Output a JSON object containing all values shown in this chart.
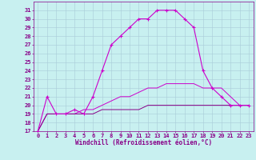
{
  "xlabel": "Windchill (Refroidissement éolien,°C)",
  "xlim": [
    -0.5,
    23.5
  ],
  "ylim": [
    17,
    32
  ],
  "yticks": [
    17,
    18,
    19,
    20,
    21,
    22,
    23,
    24,
    25,
    26,
    27,
    28,
    29,
    30,
    31
  ],
  "xticks": [
    0,
    1,
    2,
    3,
    4,
    5,
    6,
    7,
    8,
    9,
    10,
    11,
    12,
    13,
    14,
    15,
    16,
    17,
    18,
    19,
    20,
    21,
    22,
    23
  ],
  "bg_color": "#c8f0f0",
  "grid_color": "#a8ccd8",
  "line_color": "#cc00cc",
  "line_color_dark": "#880088",
  "lines": [
    {
      "x": [
        0,
        1,
        2,
        3,
        4,
        5,
        6,
        7,
        8,
        9,
        10,
        11,
        12,
        13,
        14,
        15,
        16,
        17,
        18,
        19,
        20,
        21,
        22,
        23
      ],
      "y": [
        17,
        21,
        19,
        19,
        19.5,
        19,
        21,
        24,
        27,
        28,
        29,
        30,
        30,
        31,
        31,
        31,
        30,
        29,
        24,
        22,
        21,
        20,
        20,
        20
      ],
      "marker": true,
      "color": "#cc00cc",
      "lw": 0.8,
      "ms": 3
    },
    {
      "x": [
        0,
        1,
        2,
        3,
        4,
        5,
        6,
        7,
        8,
        9,
        10,
        11,
        12,
        13,
        14,
        15,
        16,
        17,
        18,
        19,
        20,
        21,
        22,
        23
      ],
      "y": [
        17,
        19,
        19,
        19,
        19,
        19.5,
        19.5,
        20,
        20.5,
        21,
        21,
        21.5,
        22,
        22,
        22.5,
        22.5,
        22.5,
        22.5,
        22,
        22,
        22,
        21,
        20,
        20
      ],
      "marker": false,
      "color": "#cc00cc",
      "lw": 0.7
    },
    {
      "x": [
        0,
        1,
        2,
        3,
        4,
        5,
        6,
        7,
        8,
        9,
        10,
        11,
        12,
        13,
        14,
        15,
        16,
        17,
        18,
        19,
        20,
        21,
        22,
        23
      ],
      "y": [
        17,
        19,
        19,
        19,
        19,
        19,
        19,
        19.5,
        19.5,
        19.5,
        19.5,
        19.5,
        20,
        20,
        20,
        20,
        20,
        20,
        20,
        20,
        20,
        20,
        20,
        20
      ],
      "marker": false,
      "color": "#880088",
      "lw": 0.7
    }
  ],
  "tick_fontsize": 5,
  "xlabel_fontsize": 5.5,
  "tick_color": "#880088",
  "fig_w": 3.2,
  "fig_h": 2.0,
  "dpi": 100
}
